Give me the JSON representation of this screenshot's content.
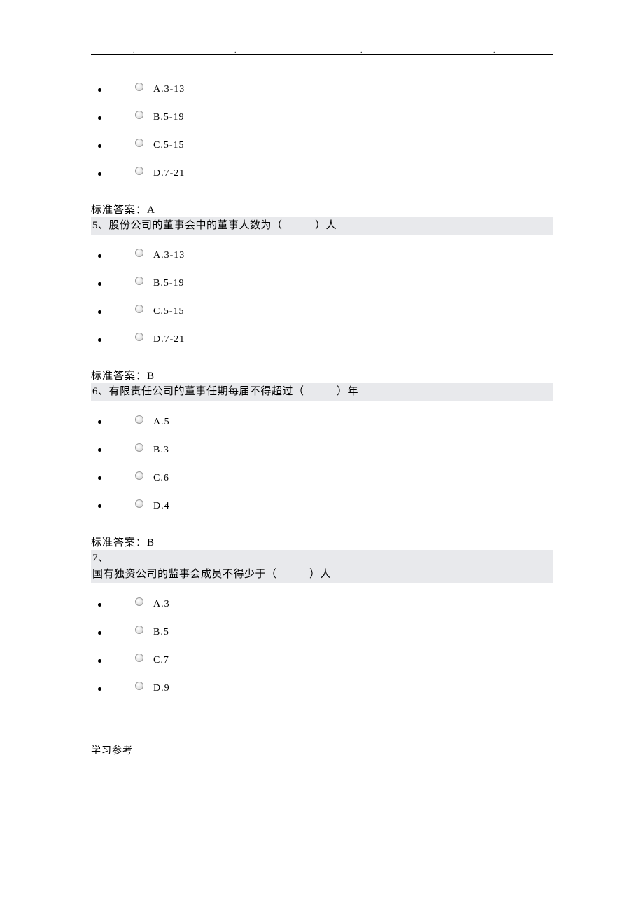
{
  "groups": [
    {
      "options": [
        {
          "label": "A.3-13"
        },
        {
          "label": "B.5-19"
        },
        {
          "label": "C.5-15"
        },
        {
          "label": "D.7-21"
        }
      ],
      "answer": "标准答案：A",
      "next_question_lines": [
        "5、股份公司的董事会中的董事人数为（　　　）人"
      ]
    },
    {
      "options": [
        {
          "label": "A.3-13"
        },
        {
          "label": "B.5-19"
        },
        {
          "label": "C.5-15"
        },
        {
          "label": "D.7-21"
        }
      ],
      "answer": "标准答案：B",
      "next_question_lines": [
        "6、有限责任公司的董事任期每届不得超过（　　　）年"
      ]
    },
    {
      "options": [
        {
          "label": "A.5"
        },
        {
          "label": "B.3"
        },
        {
          "label": "C.6"
        },
        {
          "label": "D.4"
        }
      ],
      "answer": "标准答案：B",
      "next_question_lines": [
        "7、",
        "国有独资公司的监事会成员不得少于（　　　）人"
      ]
    },
    {
      "options": [
        {
          "label": "A.3"
        },
        {
          "label": "B.5"
        },
        {
          "label": "C.7"
        },
        {
          "label": "D.9"
        }
      ],
      "answer": null,
      "next_question_lines": null
    }
  ],
  "footer": "学习参考"
}
